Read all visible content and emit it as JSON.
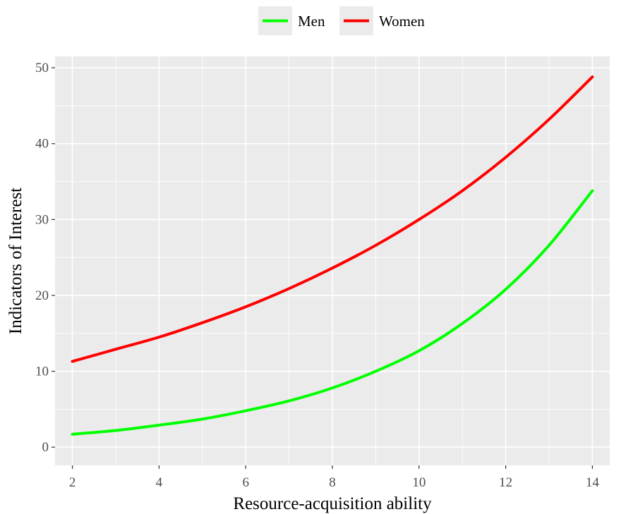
{
  "chart_data": {
    "type": "line",
    "title": "",
    "xlabel": "Resource-acquisition ability",
    "ylabel": "Indicators of Interest",
    "xlim": [
      1.6,
      14.4
    ],
    "ylim": [
      -2.4,
      51.5
    ],
    "xticks": [
      2,
      4,
      6,
      8,
      10,
      12,
      14
    ],
    "yticks": [
      0,
      10,
      20,
      30,
      40,
      50
    ],
    "x_tick_labels": [
      "2",
      "4",
      "6",
      "8",
      "10",
      "12",
      "14"
    ],
    "y_tick_labels": [
      "0",
      "10",
      "20",
      "30",
      "40",
      "50"
    ],
    "grid": true,
    "legend_position": "top",
    "x": [
      2,
      3,
      4,
      5,
      6,
      7,
      8,
      9,
      10,
      11,
      12,
      13,
      14
    ],
    "series": [
      {
        "name": "Men",
        "color": "#00ff00",
        "values": [
          1.7,
          2.2,
          2.9,
          3.7,
          4.8,
          6.1,
          7.8,
          10.0,
          12.7,
          16.3,
          20.8,
          26.6,
          33.8
        ]
      },
      {
        "name": "Women",
        "color": "#ff0000",
        "values": [
          11.3,
          12.9,
          14.5,
          16.4,
          18.5,
          20.9,
          23.6,
          26.6,
          30.0,
          33.8,
          38.2,
          43.2,
          48.8
        ]
      }
    ]
  }
}
